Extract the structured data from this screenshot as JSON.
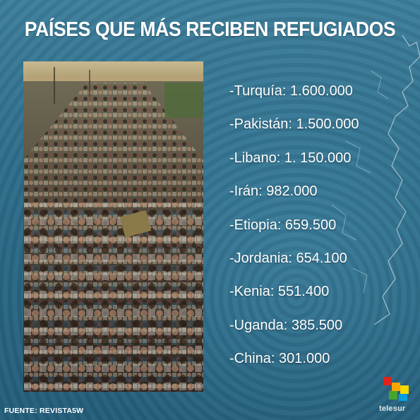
{
  "title": "PAÍSES QUE MÁS RECIBEN REFUGIADOS",
  "list": {
    "items": [
      {
        "label": "-Turquía: 1.600.000"
      },
      {
        "label": "-Pakistán: 1.500.000"
      },
      {
        "label": "-Libano: 1. 150.000"
      },
      {
        "label": "-Irán: 982.000"
      },
      {
        "label": "-Etiopia: 659.500"
      },
      {
        "label": "-Jordania: 654.100"
      },
      {
        "label": "-Kenia: 551.400"
      },
      {
        "label": "-Uganda: 385.500"
      },
      {
        "label": "-China: 301.000"
      }
    ]
  },
  "source": "FUENTE: REVISTA5W",
  "logo": {
    "brand": "telesur",
    "icon": "telesur-squares-icon",
    "colors": [
      "#e2231a",
      "#f7a600",
      "#009fe3",
      "#43a62e",
      "#f4d800"
    ]
  },
  "colors": {
    "background": "#2c6a86",
    "text": "#ffffff"
  }
}
